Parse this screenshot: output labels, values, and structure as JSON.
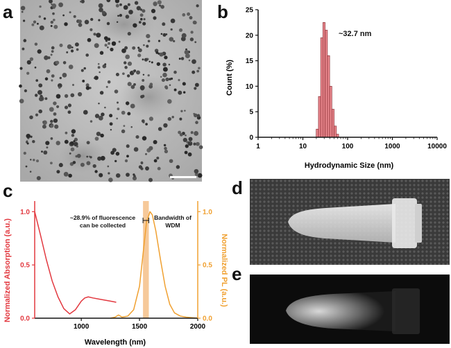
{
  "panels": {
    "a": {
      "letter": "a",
      "description_visible": false
    },
    "b": {
      "letter": "b"
    },
    "c": {
      "letter": "c"
    },
    "d": {
      "letter": "d"
    },
    "e": {
      "letter": "e"
    }
  },
  "colors": {
    "bar_fill": "#e8868c",
    "bar_stroke": "#7a1e24",
    "absorption": "#e2383f",
    "pl": "#f0a030",
    "wdm_band": "#f6c99a",
    "axis": "#111111"
  },
  "chart_data": [
    {
      "id": "b",
      "type": "bar",
      "x_scale": "log",
      "xlabel": "Hydrodynamic Size (nm)",
      "ylabel": "Count (%)",
      "xlim": [
        1,
        10000
      ],
      "ylim": [
        0,
        25
      ],
      "x_ticks": [
        "1",
        "10",
        "100",
        "1000",
        "10000"
      ],
      "y_ticks": [
        "0",
        "5",
        "10",
        "15",
        "20",
        "25"
      ],
      "annotation": "~32.7 nm",
      "bins": [
        {
          "x": 21.0,
          "value": 1.6
        },
        {
          "x": 23.6,
          "value": 8.0
        },
        {
          "x": 26.5,
          "value": 19.5
        },
        {
          "x": 29.7,
          "value": 22.5
        },
        {
          "x": 33.4,
          "value": 21.0
        },
        {
          "x": 37.5,
          "value": 16.0
        },
        {
          "x": 42.0,
          "value": 10.0
        },
        {
          "x": 47.2,
          "value": 5.5
        },
        {
          "x": 53.0,
          "value": 2.2
        },
        {
          "x": 59.5,
          "value": 0.6
        }
      ]
    },
    {
      "id": "c",
      "type": "line",
      "xlabel": "Wavelength (nm)",
      "ylabel_left": "Normalized Absorption (a.u.)",
      "ylabel_right": "Normalized PL (a.u.)",
      "xlim": [
        600,
        2000
      ],
      "ylim": [
        0,
        1.1
      ],
      "x_ticks": [
        "1000",
        "1500",
        "2000"
      ],
      "y_ticks_left": [
        "0.0",
        "0.5",
        "1.0"
      ],
      "y_ticks_right": [
        "0.0",
        "0.5",
        "1.0"
      ],
      "annotation_left": [
        "~28.9% of fluorescence",
        "can be collected"
      ],
      "annotation_right": [
        "Bandwidth of",
        "WDM"
      ],
      "band": [
        1530,
        1580
      ],
      "series": [
        {
          "key": "absorption",
          "x": [
            600,
            650,
            700,
            750,
            800,
            850,
            900,
            950,
            1000,
            1030,
            1060,
            1100,
            1150,
            1200,
            1250,
            1300
          ],
          "y": [
            1.0,
            0.78,
            0.55,
            0.35,
            0.2,
            0.09,
            0.04,
            0.08,
            0.16,
            0.19,
            0.2,
            0.19,
            0.18,
            0.17,
            0.16,
            0.15
          ]
        },
        {
          "key": "pl",
          "x": [
            1250,
            1290,
            1320,
            1350,
            1400,
            1450,
            1500,
            1530,
            1560,
            1590,
            1610,
            1640,
            1680,
            1720,
            1760,
            1800,
            1850,
            1900,
            2000
          ],
          "y": [
            0.0,
            0.01,
            0.03,
            0.01,
            0.02,
            0.08,
            0.3,
            0.6,
            0.9,
            1.0,
            0.97,
            0.82,
            0.55,
            0.3,
            0.13,
            0.05,
            0.02,
            0.01,
            0.0
          ]
        }
      ]
    }
  ]
}
